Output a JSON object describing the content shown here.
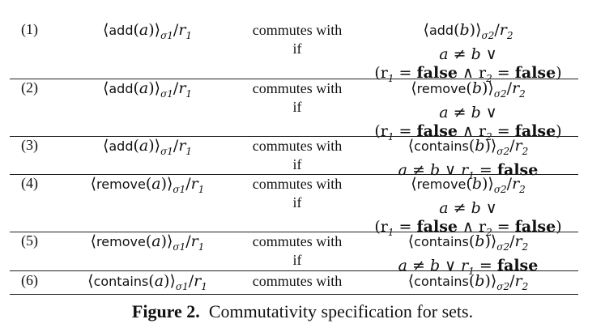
{
  "rows": [
    {
      "num": "(1)",
      "left_op": "add",
      "left_arg": "a",
      "left_sigma": "σ",
      "left_sub": "1",
      "left_r": "r",
      "left_rsub": "1",
      "cw": "commutes with",
      "if": "if",
      "right_op": "add",
      "right_arg": "b",
      "right_sigma": "σ",
      "right_sub": "2",
      "right_r": "r",
      "right_rsub": "2",
      "cond1": "a ≠ b ∨",
      "cond2_pre": "(r",
      "cond2_sub1": "1",
      "cond2_mid": " = ",
      "cond2_false1": "false",
      "cond2_and": " ∧ r",
      "cond2_sub2": "2",
      "cond2_eq": " = ",
      "cond2_false2": "false",
      "cond2_close": ")"
    },
    {
      "num": "(2)",
      "left_op": "add",
      "left_arg": "a",
      "left_sigma": "σ",
      "left_sub": "1",
      "left_r": "r",
      "left_rsub": "1",
      "cw": "commutes with",
      "if": "if",
      "right_op": "remove",
      "right_arg": "b",
      "right_sigma": "σ",
      "right_sub": "2",
      "right_r": "r",
      "right_rsub": "2",
      "cond1": "a ≠ b ∨",
      "cond2_pre": "(r",
      "cond2_sub1": "1",
      "cond2_mid": " = ",
      "cond2_false1": "false",
      "cond2_and": " ∧ r",
      "cond2_sub2": "2",
      "cond2_eq": " = ",
      "cond2_false2": "false",
      "cond2_close": ")"
    },
    {
      "num": "(3)",
      "left_op": "add",
      "left_arg": "a",
      "left_sigma": "σ",
      "left_sub": "1",
      "left_r": "r",
      "left_rsub": "1",
      "cw": "commutes with",
      "if": "if",
      "right_op": "contains",
      "right_arg": "b",
      "right_sigma": "σ",
      "right_sub": "2",
      "right_r": "r",
      "right_rsub": "2",
      "cond1_pre": "a ≠ b ∨ r",
      "cond1_sub": "1",
      "cond1_eq": " = ",
      "cond1_false": "false"
    },
    {
      "num": "(4)",
      "left_op": "remove",
      "left_arg": "a",
      "left_sigma": "σ",
      "left_sub": "1",
      "left_r": "r",
      "left_rsub": "1",
      "cw": "commutes with",
      "if": "if",
      "right_op": "remove",
      "right_arg": "b",
      "right_sigma": "σ",
      "right_sub": "2",
      "right_r": "r",
      "right_rsub": "2",
      "cond1": "a ≠ b ∨",
      "cond2_pre": "(r",
      "cond2_sub1": "1",
      "cond2_mid": " = ",
      "cond2_false1": "false",
      "cond2_and": " ∧ r",
      "cond2_sub2": "2",
      "cond2_eq": " = ",
      "cond2_false2": "false",
      "cond2_close": ")"
    },
    {
      "num": "(5)",
      "left_op": "remove",
      "left_arg": "a",
      "left_sigma": "σ",
      "left_sub": "1",
      "left_r": "r",
      "left_rsub": "1",
      "cw": "commutes with",
      "if": "if",
      "right_op": "contains",
      "right_arg": "b",
      "right_sigma": "σ",
      "right_sub": "2",
      "right_r": "r",
      "right_rsub": "2",
      "cond1_pre": "a ≠ b ∨ r",
      "cond1_sub": "1",
      "cond1_eq": " = ",
      "cond1_false": "false"
    },
    {
      "num": "(6)",
      "left_op": "contains",
      "left_arg": "a",
      "left_sigma": "σ",
      "left_sub": "1",
      "left_r": "r",
      "left_rsub": "1",
      "cw": "commutes with",
      "right_op": "contains",
      "right_arg": "b",
      "right_sigma": "σ",
      "right_sub": "2",
      "right_r": "r",
      "right_rsub": "2"
    }
  ],
  "caption": {
    "label": "Figure 2.",
    "text": "Commutativity specification for sets."
  }
}
